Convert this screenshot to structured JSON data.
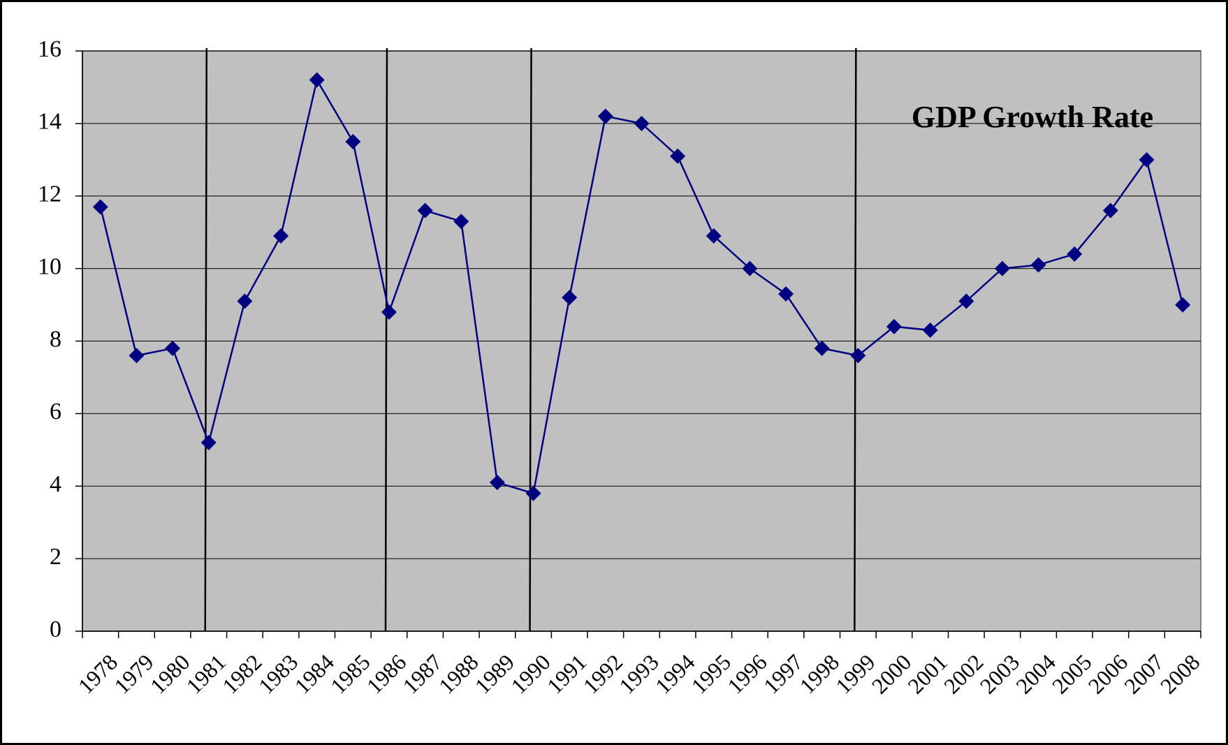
{
  "chart_data": {
    "type": "line",
    "title": "GDP Growth Rate",
    "categories": [
      "1978",
      "1979",
      "1980",
      "1981",
      "1982",
      "1983",
      "1984",
      "1985",
      "1986",
      "1987",
      "1988",
      "1989",
      "1990",
      "1991",
      "1992",
      "1993",
      "1994",
      "1995",
      "1996",
      "1997",
      "1998",
      "1999",
      "2000",
      "2001",
      "2002",
      "2003",
      "2004",
      "2005",
      "2006",
      "2007",
      "2008"
    ],
    "series": [
      {
        "name": "GDP Growth Rate",
        "color": "#000080",
        "values": [
          11.7,
          7.6,
          7.8,
          5.2,
          9.1,
          10.9,
          15.2,
          13.5,
          8.8,
          11.6,
          11.3,
          4.1,
          3.8,
          9.2,
          14.2,
          14.0,
          13.1,
          10.9,
          10.0,
          9.3,
          7.8,
          7.6,
          8.4,
          8.3,
          9.1,
          10.0,
          10.1,
          10.4,
          11.6,
          13.0,
          9.0
        ]
      }
    ],
    "vertical_lines": [
      "1981",
      "1986",
      "1990",
      "1999"
    ],
    "ylim": [
      0,
      16
    ],
    "yticks": [
      0,
      2,
      4,
      6,
      8,
      10,
      12,
      14,
      16
    ],
    "grid": true,
    "plot_background": "#c0c0c0"
  }
}
